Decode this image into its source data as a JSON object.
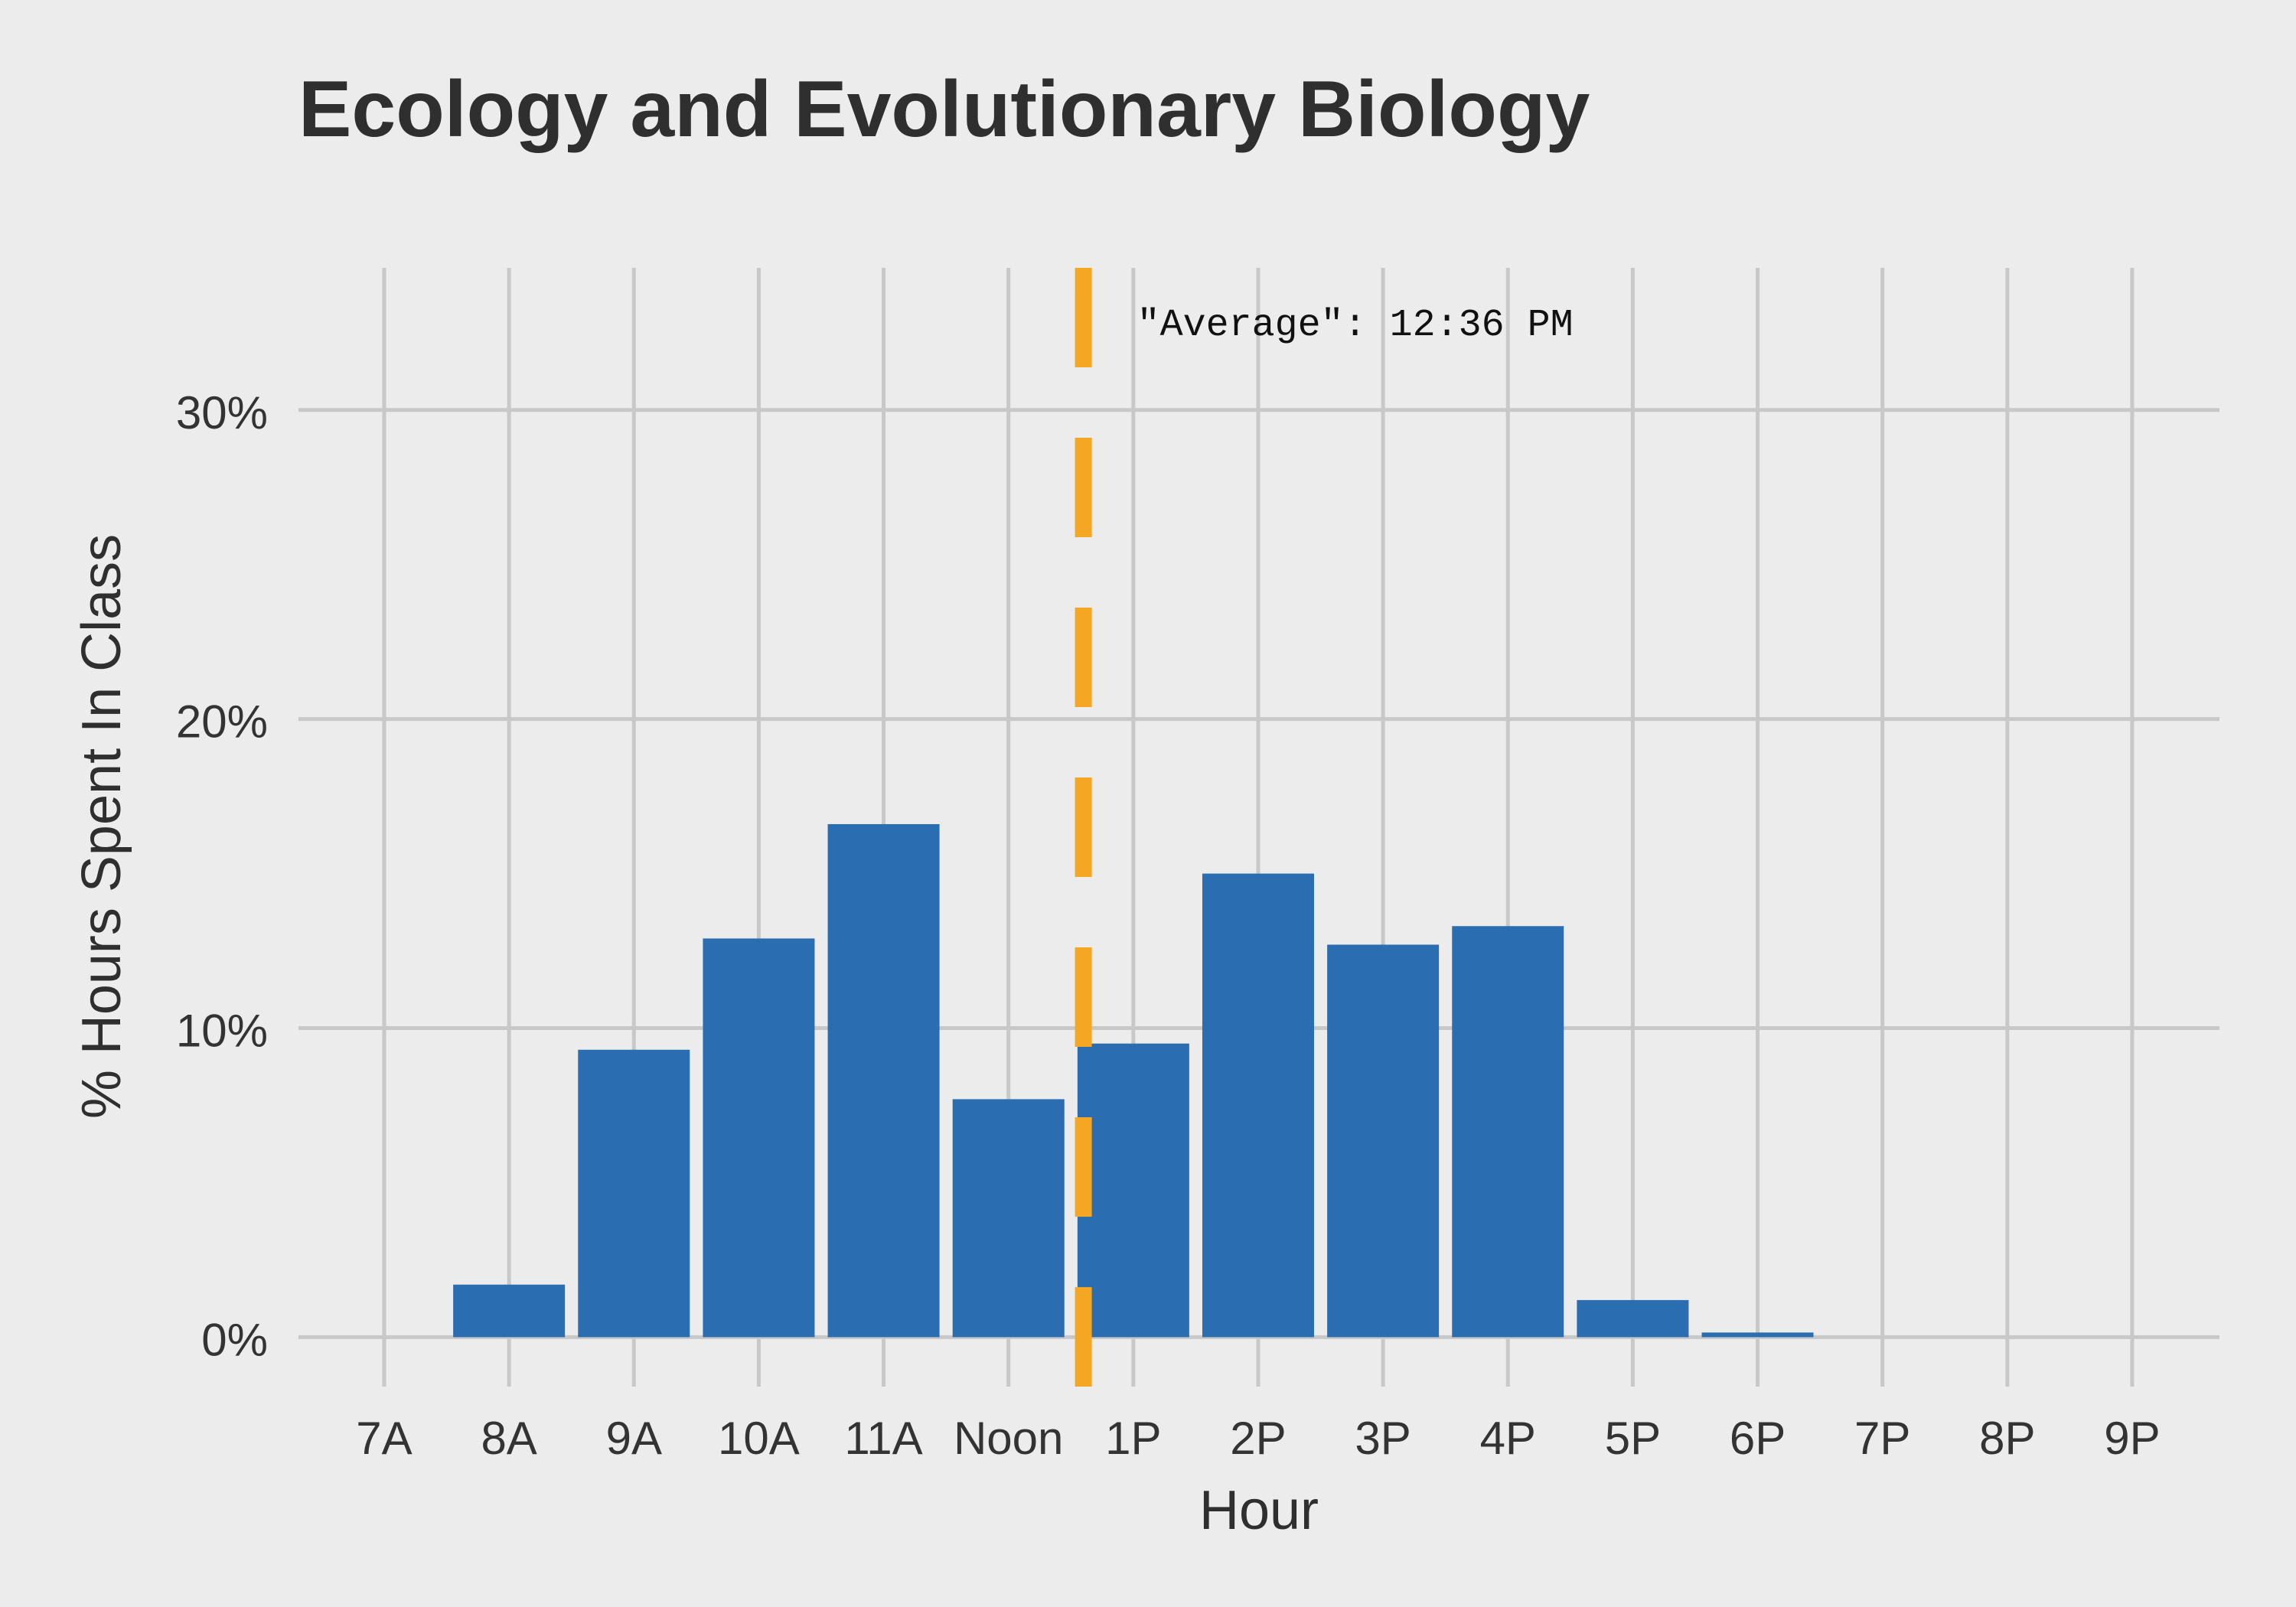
{
  "chart_data": {
    "type": "bar",
    "title": "Ecology and Evolutionary Biology",
    "xlabel": "Hour",
    "ylabel": "% Hours Spent In Class",
    "categories": [
      "7A",
      "8A",
      "9A",
      "10A",
      "11A",
      "Noon",
      "1P",
      "2P",
      "3P",
      "4P",
      "5P",
      "6P",
      "7P",
      "8P",
      "9P"
    ],
    "values": [
      0,
      1.7,
      9.3,
      12.9,
      16.6,
      7.7,
      9.5,
      15.0,
      12.7,
      13.3,
      1.2,
      0.15,
      0,
      0,
      0
    ],
    "ylim": [
      -1.6,
      34.6
    ],
    "y_ticks": [
      0,
      10,
      20,
      30
    ],
    "y_tick_labels": [
      "0%",
      "10%",
      "20%",
      "30%"
    ],
    "grid": true,
    "average": {
      "position": 5.6,
      "label": "\"Average\": 12:36 PM"
    },
    "colors": {
      "bar": "#2a6db0",
      "average_line": "#f5a623",
      "grid": "#c8c8c8",
      "background": "#ececec"
    }
  }
}
